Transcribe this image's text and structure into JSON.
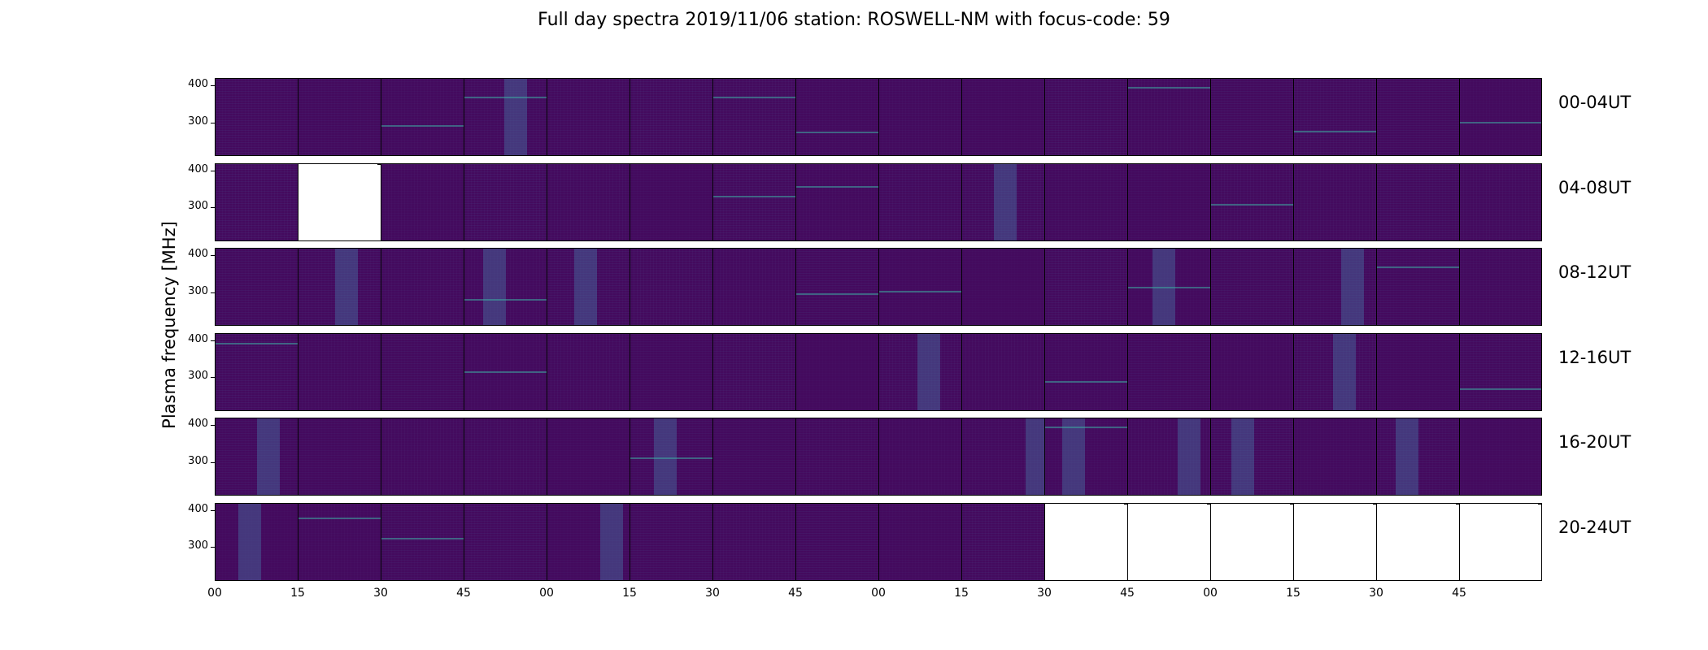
{
  "chart_data": {
    "type": "heatmap",
    "title": "Full day spectra 2019/11/06 station: ROSWELL-NM with focus-code: 59",
    "ylabel": "Plasma frequency [MHz]",
    "yticks": [
      "400",
      "300"
    ],
    "ylim": [
      210,
      420
    ],
    "xticks": [
      "00",
      "15",
      "30",
      "45",
      "00",
      "15",
      "30",
      "45",
      "00",
      "15",
      "30",
      "45",
      "00",
      "15",
      "30",
      "45"
    ],
    "colormap": "viridis",
    "colors": {
      "background": "#440a5e",
      "missing": "#ffffff",
      "feature": "#2d6f8e",
      "highlight": "#3fbc73"
    },
    "rows": [
      {
        "label": "00-04UT",
        "panels": [
          1,
          1,
          1,
          1,
          1,
          1,
          1,
          1,
          1,
          1,
          1,
          1,
          1,
          1,
          1,
          1
        ]
      },
      {
        "label": "04-08UT",
        "panels": [
          1,
          0,
          1,
          1,
          1,
          1,
          1,
          1,
          1,
          1,
          1,
          1,
          1,
          1,
          1,
          1
        ]
      },
      {
        "label": "08-12UT",
        "panels": [
          1,
          1,
          1,
          1,
          1,
          1,
          1,
          1,
          1,
          1,
          1,
          1,
          1,
          1,
          1,
          1
        ]
      },
      {
        "label": "12-16UT",
        "panels": [
          1,
          1,
          1,
          1,
          1,
          1,
          1,
          1,
          1,
          1,
          1,
          1,
          1,
          1,
          1,
          1
        ]
      },
      {
        "label": "16-20UT",
        "panels": [
          1,
          1,
          1,
          1,
          1,
          1,
          1,
          1,
          1,
          1,
          1,
          1,
          1,
          1,
          1,
          1
        ]
      },
      {
        "label": "20-24UT",
        "panels": [
          1,
          1,
          1,
          1,
          1,
          1,
          1,
          1,
          1,
          1,
          0,
          0,
          0,
          0,
          0,
          0
        ]
      }
    ],
    "grid": false,
    "legend": "none"
  }
}
